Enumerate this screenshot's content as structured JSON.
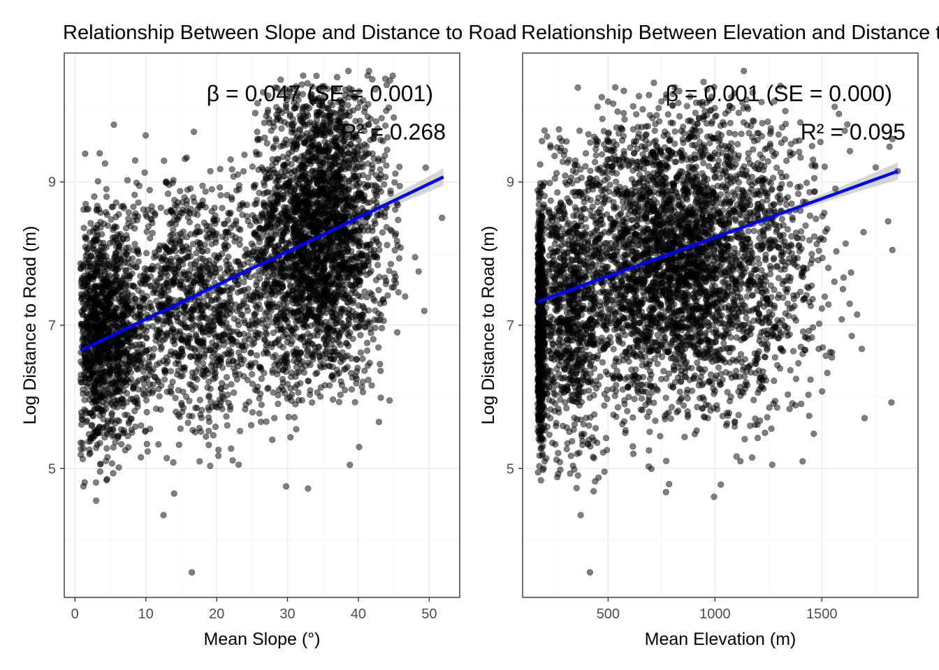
{
  "chart_data": [
    {
      "type": "scatter",
      "title": "Relationship Between Slope and Distance to Road",
      "xlabel": "Mean Slope (°)",
      "ylabel": "Log Distance to Road (m)",
      "xlim": [
        -1.5,
        54.3
      ],
      "ylim": [
        3.2,
        10.8
      ],
      "xticks": [
        0,
        10,
        20,
        30,
        40,
        50
      ],
      "yticks": [
        5,
        7,
        9
      ],
      "grid": true,
      "annotation_beta": "β = 0.047 (SE = 0.001)",
      "annotation_r2": "R² = 0.268",
      "fit": {
        "slope": 0.047,
        "x_range": [
          0.8,
          52
        ],
        "start_y": 6.65,
        "end_y": 9.07,
        "color": "#0000ff"
      },
      "point_color": "#000000",
      "series": [
        {
          "clusters": [
            {
              "cx": 34.5,
              "cy": 8.3,
              "sx": 4.8,
              "sy": 1.1,
              "n": 2600,
              "xmin": 25,
              "xmax": 46,
              "ymin": 5.9,
              "ymax": 10.5
            },
            {
              "cx": 3.5,
              "cy": 6.8,
              "sx": 2.6,
              "sy": 0.75,
              "n": 1000,
              "xmin": 0.8,
              "xmax": 11,
              "ymin": 4.8,
              "ymax": 8.8
            },
            {
              "cx": 16,
              "cy": 7.3,
              "sx": 8,
              "sy": 0.9,
              "n": 1500,
              "xmin": 1,
              "xmax": 32,
              "ymin": 5,
              "ymax": 9.4
            }
          ],
          "outliers": [
            {
              "x": 16.5,
              "y": 3.55
            },
            {
              "x": 12.5,
              "y": 4.35
            },
            {
              "x": 14,
              "y": 4.65
            },
            {
              "x": 3,
              "y": 4.55
            },
            {
              "x": 1.2,
              "y": 4.75
            },
            {
              "x": 29.8,
              "y": 4.75
            },
            {
              "x": 32.9,
              "y": 4.72
            },
            {
              "x": 38.8,
              "y": 5.05
            },
            {
              "x": 17.6,
              "y": 5.1
            },
            {
              "x": 5.5,
              "y": 9.8
            },
            {
              "x": 16.8,
              "y": 9.7
            },
            {
              "x": 10,
              "y": 9.65
            },
            {
              "x": 51.8,
              "y": 8.5
            },
            {
              "x": 49.3,
              "y": 7.2
            },
            {
              "x": 48.5,
              "y": 7.75
            },
            {
              "x": 42.9,
              "y": 5.65
            },
            {
              "x": 40.1,
              "y": 5.3
            },
            {
              "x": 38.6,
              "y": 10.55
            },
            {
              "x": 41.5,
              "y": 10.55
            },
            {
              "x": 48,
              "y": 7.95
            },
            {
              "x": 46.6,
              "y": 7.4
            },
            {
              "x": 44.4,
              "y": 5.95
            },
            {
              "x": 45,
              "y": 9.9
            },
            {
              "x": 49.5,
              "y": 9.2
            },
            {
              "x": 8.5,
              "y": 9.3
            },
            {
              "x": 3.5,
              "y": 9.4
            }
          ]
        }
      ]
    },
    {
      "type": "scatter",
      "title": "Relationship Between Elevation and Distance to Road",
      "xlabel": "Mean Elevation (m)",
      "ylabel": "Log Distance to Road (m)",
      "xlim": [
        100,
        1950
      ],
      "ylim": [
        3.2,
        10.8
      ],
      "xticks": [
        500,
        1000,
        1500
      ],
      "yticks": [
        5,
        7,
        9
      ],
      "grid": true,
      "annotation_beta": "β = 0.001 (SE = 0.000)",
      "annotation_r2": "R² = 0.095",
      "fit": {
        "slope": 0.001,
        "x_range": [
          170,
          1855
        ],
        "start_y": 7.33,
        "end_y": 9.15,
        "color": "#0000ff"
      },
      "point_color": "#000000",
      "series": [
        {
          "clusters": [
            {
              "cx": 800,
              "cy": 7.9,
              "sx": 260,
              "sy": 1.05,
              "n": 3300,
              "xmin": 170,
              "xmax": 1600,
              "ymin": 4.6,
              "ymax": 10.4
            },
            {
              "cx": 182,
              "cy": 7.0,
              "sx": 10,
              "sy": 0.85,
              "n": 700,
              "xmin": 170,
              "xmax": 205,
              "ymin": 4.8,
              "ymax": 9.6
            },
            {
              "cx": 310,
              "cy": 7.2,
              "sx": 80,
              "sy": 1.0,
              "n": 700,
              "xmin": 200,
              "xmax": 500,
              "ymin": 4.6,
              "ymax": 9.8
            },
            {
              "cx": 1200,
              "cy": 7.8,
              "sx": 200,
              "sy": 1.2,
              "n": 400,
              "xmin": 900,
              "xmax": 1850,
              "ymin": 5.0,
              "ymax": 10.4
            }
          ],
          "outliers": [
            {
              "x": 415,
              "y": 3.55
            },
            {
              "x": 372,
              "y": 4.35
            },
            {
              "x": 1830,
              "y": 8.05
            },
            {
              "x": 1855,
              "y": 9.15
            },
            {
              "x": 1810,
              "y": 8.45
            },
            {
              "x": 1830,
              "y": 9.6
            },
            {
              "x": 1665,
              "y": 7.15
            },
            {
              "x": 1640,
              "y": 6.85
            },
            {
              "x": 1410,
              "y": 5.1
            },
            {
              "x": 1410,
              "y": 6.6
            },
            {
              "x": 1135,
              "y": 10.55
            },
            {
              "x": 1560,
              "y": 10.05
            },
            {
              "x": 1580,
              "y": 9.95
            },
            {
              "x": 1695,
              "y": 8.3
            },
            {
              "x": 1630,
              "y": 7.3
            }
          ]
        }
      ]
    }
  ]
}
